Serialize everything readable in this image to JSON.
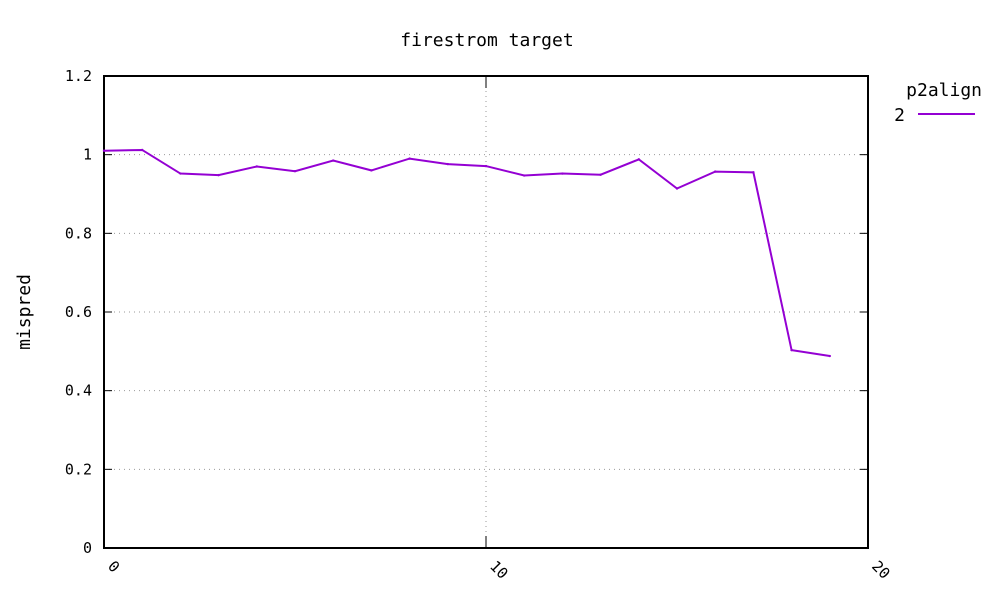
{
  "chart_data": {
    "type": "line",
    "title": "firestrom target",
    "xlabel": "",
    "ylabel": "mispred",
    "xlim": [
      0,
      20
    ],
    "ylim": [
      0,
      1.2
    ],
    "x_ticks": [
      "0",
      "10",
      "20"
    ],
    "x_tick_values": [
      0,
      10,
      20
    ],
    "y_ticks": [
      "0",
      "0.2",
      "0.4",
      "0.6",
      "0.8",
      "1",
      "1.2"
    ],
    "y_tick_values": [
      0,
      0.2,
      0.4,
      0.6,
      0.8,
      1,
      1.2
    ],
    "grid": true,
    "legend": {
      "title": "p2align",
      "placement": "right"
    },
    "series": [
      {
        "name": "2",
        "color": "#9400d3",
        "x": [
          0,
          1,
          2,
          3,
          4,
          5,
          6,
          7,
          8,
          9,
          10,
          11,
          12,
          13,
          14,
          15,
          16,
          17,
          18,
          19
        ],
        "values": [
          1.01,
          1.012,
          0.952,
          0.948,
          0.97,
          0.958,
          0.985,
          0.96,
          0.99,
          0.976,
          0.971,
          0.947,
          0.952,
          0.949,
          0.988,
          0.914,
          0.957,
          0.955,
          0.503,
          0.488
        ]
      }
    ]
  }
}
